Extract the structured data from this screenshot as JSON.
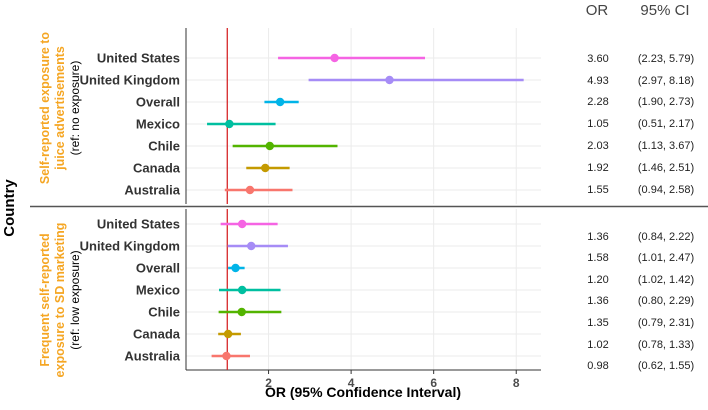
{
  "chart_data": {
    "type": "forest",
    "x_label": "OR (95% Confidence Interval)",
    "y_label": "Country",
    "xlim": [
      0,
      8.6
    ],
    "x_ticks": [
      2,
      4,
      6,
      8
    ],
    "reference_line": 1,
    "reference_line_color": "#d62728",
    "header": {
      "or": "OR",
      "ci": "95% CI"
    },
    "series_colors": {
      "United States": "#f564e3",
      "United Kingdom": "#a68cf6",
      "Overall": "#00b4e8",
      "Mexico": "#00bfa0",
      "Chile": "#53b400",
      "Canada": "#c49a00",
      "Australia": "#f8766d"
    },
    "panels": [
      {
        "strip_label_line1": "Self-reported exposure to",
        "strip_label_line2": "juice advertisements",
        "strip_label_line3": "(ref: no exposure)",
        "rows": [
          {
            "country": "United States",
            "or": 3.6,
            "lo": 2.23,
            "hi": 5.79,
            "or_text": "3.60",
            "ci_text": "(2.23, 5.79)"
          },
          {
            "country": "United Kingdom",
            "or": 4.93,
            "lo": 2.97,
            "hi": 8.18,
            "or_text": "4.93",
            "ci_text": "(2.97, 8.18)"
          },
          {
            "country": "Overall",
            "or": 2.28,
            "lo": 1.9,
            "hi": 2.73,
            "or_text": "2.28",
            "ci_text": "(1.90, 2.73)"
          },
          {
            "country": "Mexico",
            "or": 1.05,
            "lo": 0.51,
            "hi": 2.17,
            "or_text": "1.05",
            "ci_text": "(0.51, 2.17)"
          },
          {
            "country": "Chile",
            "or": 2.03,
            "lo": 1.13,
            "hi": 3.67,
            "or_text": "2.03",
            "ci_text": "(1.13, 3.67)"
          },
          {
            "country": "Canada",
            "or": 1.92,
            "lo": 1.46,
            "hi": 2.51,
            "or_text": "1.92",
            "ci_text": "(1.46, 2.51)"
          },
          {
            "country": "Australia",
            "or": 1.55,
            "lo": 0.94,
            "hi": 2.58,
            "or_text": "1.55",
            "ci_text": "(0.94, 2.58)"
          }
        ]
      },
      {
        "strip_label_line1": "Frequent self-reported",
        "strip_label_line2": "exposure to SD marketing",
        "strip_label_line3": "(ref: low exposure)",
        "rows": [
          {
            "country": "United States",
            "or": 1.36,
            "lo": 0.84,
            "hi": 2.22,
            "or_text": "1.36",
            "ci_text": "(0.84, 2.22)"
          },
          {
            "country": "United Kingdom",
            "or": 1.58,
            "lo": 1.01,
            "hi": 2.47,
            "or_text": "1.58",
            "ci_text": "(1.01, 2.47)"
          },
          {
            "country": "Overall",
            "or": 1.2,
            "lo": 1.02,
            "hi": 1.42,
            "or_text": "1.20",
            "ci_text": "(1.02, 1.42)"
          },
          {
            "country": "Mexico",
            "or": 1.36,
            "lo": 0.8,
            "hi": 2.29,
            "or_text": "1.36",
            "ci_text": "(0.80, 2.29)"
          },
          {
            "country": "Chile",
            "or": 1.35,
            "lo": 0.79,
            "hi": 2.31,
            "or_text": "1.35",
            "ci_text": "(0.79, 2.31)"
          },
          {
            "country": "Canada",
            "or": 1.02,
            "lo": 0.78,
            "hi": 1.33,
            "or_text": "1.02",
            "ci_text": "(0.78, 1.33)"
          },
          {
            "country": "Australia",
            "or": 0.98,
            "lo": 0.62,
            "hi": 1.55,
            "or_text": "0.98",
            "ci_text": "(0.62, 1.55)"
          }
        ]
      }
    ]
  }
}
